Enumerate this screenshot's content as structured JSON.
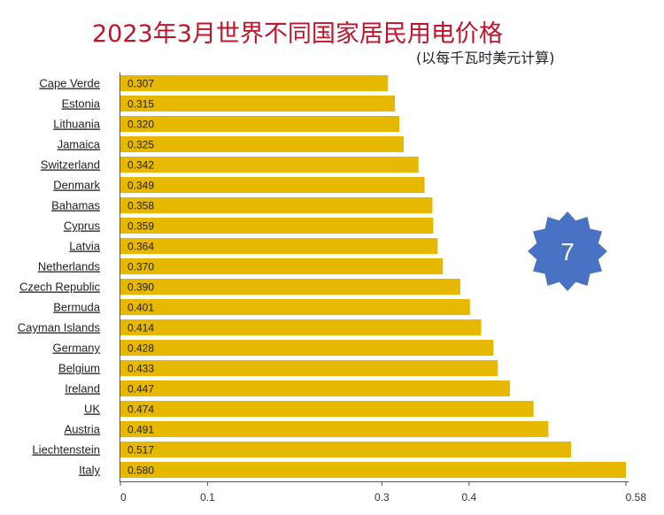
{
  "chart_data": {
    "type": "bar",
    "orientation": "horizontal",
    "title": "2023年3月世界不同国家居民用电价格",
    "subtitle": "(以每千瓦时美元计算)",
    "categories": [
      "Cape Verde",
      "Estonia",
      "Lithuania",
      "Jamaica",
      "Switzerland",
      "Denmark",
      "Bahamas",
      "Cyprus",
      "Latvia",
      "Netherlands",
      "Czech Republic",
      "Bermuda",
      "Cayman Islands",
      "Germany",
      "Belgium",
      "Ireland",
      "UK",
      "Austria",
      "Liechtenstein",
      "Italy"
    ],
    "values": [
      0.307,
      0.315,
      0.32,
      0.325,
      0.342,
      0.349,
      0.358,
      0.359,
      0.364,
      0.37,
      0.39,
      0.401,
      0.414,
      0.428,
      0.433,
      0.447,
      0.474,
      0.491,
      0.517,
      0.58
    ],
    "value_labels": [
      "0.307",
      "0.315",
      "0.320",
      "0.325",
      "0.342",
      "0.349",
      "0.358",
      "0.359",
      "0.364",
      "0.370",
      "0.390",
      "0.401",
      "0.414",
      "0.428",
      "0.433",
      "0.447",
      "0.474",
      "0.491",
      "0.517",
      "0.580"
    ],
    "x_ticks": [
      0,
      0.1,
      0.3,
      0.4,
      0.58
    ],
    "x_tick_labels": [
      "0",
      "0.1",
      "0.3",
      "0.4",
      "0.58"
    ],
    "xlim": [
      0,
      0.58
    ],
    "bar_color": "#e6b800",
    "grid": false,
    "legend": "none"
  },
  "badge": {
    "text": "7",
    "shape": "star-burst",
    "color": "#4a72c4"
  }
}
